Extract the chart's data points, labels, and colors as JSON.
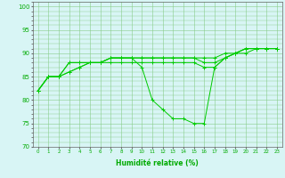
{
  "x_labels": [
    0,
    1,
    2,
    3,
    4,
    5,
    6,
    7,
    8,
    9,
    10,
    11,
    12,
    13,
    14,
    15,
    16,
    17,
    18,
    19,
    20,
    21,
    22,
    23
  ],
  "series": [
    [
      82,
      85,
      85,
      88,
      88,
      88,
      88,
      89,
      89,
      89,
      87,
      80,
      78,
      76,
      76,
      75,
      75,
      87,
      89,
      90,
      91,
      91,
      91,
      91
    ],
    [
      82,
      85,
      85,
      88,
      88,
      88,
      88,
      89,
      89,
      89,
      89,
      89,
      89,
      89,
      89,
      89,
      89,
      89,
      90,
      90,
      91,
      91,
      91,
      91
    ],
    [
      82,
      85,
      85,
      86,
      87,
      88,
      88,
      89,
      89,
      89,
      89,
      89,
      89,
      89,
      89,
      89,
      88,
      88,
      89,
      90,
      91,
      91,
      91,
      91
    ],
    [
      82,
      85,
      85,
      86,
      87,
      88,
      88,
      88,
      88,
      88,
      88,
      88,
      88,
      88,
      88,
      88,
      87,
      87,
      89,
      90,
      90,
      91,
      91,
      91
    ]
  ],
  "line_color": "#00cc00",
  "bg_color": "#d8f5f5",
  "grid_color": "#88cc88",
  "xlabel_color": "#00aa00",
  "tick_color": "#00aa00",
  "ylim": [
    70,
    101
  ],
  "yticks": [
    70,
    75,
    80,
    85,
    90,
    95,
    100
  ],
  "xlabel": "Humidité relative (%)",
  "marker": "+"
}
